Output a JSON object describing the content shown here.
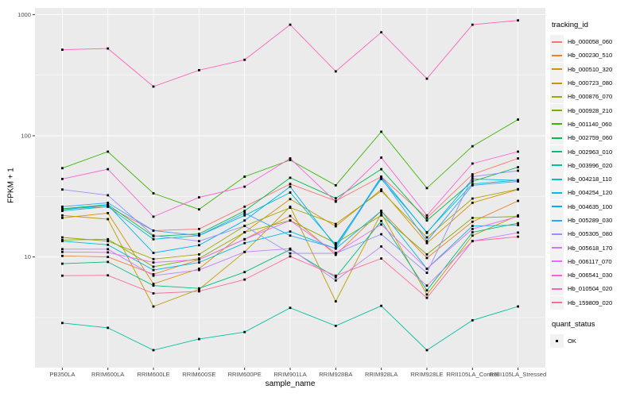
{
  "colors": {
    "panel_bg": "#EBEBEB",
    "grid": "#FFFFFF",
    "point": "#000000",
    "tick": "#333333",
    "tick_label": "#4D4D4D",
    "legend_key_bg": "#F2F2F2"
  },
  "chart_data": {
    "type": "line",
    "title": "",
    "xlabel": "sample_name",
    "ylabel": "FPKM + 1",
    "y_scale": "log10",
    "ylim": [
      1.2,
      1100
    ],
    "y_ticks": [
      1000,
      100,
      10
    ],
    "y_minor": [
      316.2,
      31.62,
      3.162
    ],
    "grid": "on",
    "legend_position": "right",
    "legend_title": "tracking_id",
    "legend2_title": "quant_status",
    "quant_status_items": [
      "OK"
    ],
    "categories": [
      "PB350LA",
      "RRIM600LA",
      "RRIM600LE",
      "RRIM600SE",
      "RRIM600PE",
      "RRIM901LA",
      "RRIM928BA",
      "RRIM928LA",
      "RRIM928LE",
      "RRII105LA_Control",
      "RRII105LA_Stressed"
    ],
    "series": [
      {
        "name": "Hb_000058_060",
        "color": "#F8766D",
        "values": [
          25,
          26,
          16.5,
          17,
          26,
          40,
          29,
          46,
          21,
          48,
          65
        ]
      },
      {
        "name": "Hb_000230_510",
        "color": "#EA8331",
        "values": [
          10.2,
          10,
          7.2,
          9.5,
          14,
          21.8,
          10.4,
          24,
          9.8,
          19.5,
          29
        ]
      },
      {
        "name": "Hb_000510_320",
        "color": "#D89000",
        "values": [
          21,
          23,
          6,
          8,
          16,
          30,
          17.9,
          36,
          13,
          28,
          36
        ]
      },
      {
        "name": "Hb_000723_080",
        "color": "#C09B00",
        "values": [
          22,
          20.5,
          3.9,
          5.4,
          11,
          26,
          4.3,
          23,
          4.9,
          15,
          22
        ]
      },
      {
        "name": "Hb_000876_070",
        "color": "#A3A500",
        "values": [
          14.5,
          13.5,
          9.6,
          10.5,
          18,
          25.5,
          18.7,
          35,
          14.5,
          30.3,
          36.3
        ]
      },
      {
        "name": "Hb_000928_210",
        "color": "#7CAE00",
        "values": [
          13.8,
          14,
          8.3,
          9.7,
          16,
          20,
          13,
          22,
          10.5,
          21,
          21.6
        ]
      },
      {
        "name": "Hb_001140_060",
        "color": "#39B600",
        "values": [
          54,
          74,
          33.5,
          24.7,
          46,
          63,
          39,
          108,
          37,
          82,
          136
        ]
      },
      {
        "name": "Hb_002759_060",
        "color": "#00BB4E",
        "values": [
          25,
          27,
          14.8,
          15.5,
          24,
          45,
          30.5,
          53,
          20,
          42,
          55
        ]
      },
      {
        "name": "Hb_002963_010",
        "color": "#00BF7D",
        "values": [
          8.8,
          9.1,
          5.8,
          5.5,
          7.5,
          11.5,
          6.8,
          19.8,
          5.3,
          16,
          19
        ]
      },
      {
        "name": "Hb_003996_020",
        "color": "#00C1A3",
        "values": [
          2.85,
          2.6,
          1.7,
          2.1,
          2.4,
          3.8,
          2.7,
          3.95,
          1.7,
          3,
          3.9
        ]
      },
      {
        "name": "Hb_004218_110",
        "color": "#00BFC4",
        "values": [
          24,
          26,
          14,
          15,
          22,
          34,
          12.6,
          44,
          16,
          40,
          43
        ]
      },
      {
        "name": "Hb_004254_120",
        "color": "#00BAE0",
        "values": [
          13.5,
          12.6,
          7.8,
          9,
          13,
          16.2,
          11.7,
          24,
          8,
          18,
          18.3
        ]
      },
      {
        "name": "Hb_004635_100",
        "color": "#00B0F6",
        "values": [
          24.5,
          26.8,
          10.8,
          12.5,
          20,
          38,
          12.2,
          46,
          15.8,
          44,
          42.8
        ]
      },
      {
        "name": "Hb_005289_030",
        "color": "#35A2FF",
        "values": [
          26,
          28,
          16.5,
          15,
          23,
          15,
          11.8,
          45,
          13.5,
          39,
          42
        ]
      },
      {
        "name": "Hb_005305_080",
        "color": "#9590FF",
        "values": [
          36,
          32.3,
          15,
          13.5,
          18,
          10.7,
          10.7,
          15.4,
          7.4,
          46,
          51.5
        ]
      },
      {
        "name": "Hb_005618_170",
        "color": "#C77CFF",
        "values": [
          11.6,
          11.6,
          7,
          7.8,
          11,
          11.7,
          6.4,
          12.2,
          5.8,
          13.5,
          15.9
        ]
      },
      {
        "name": "Hb_006117_070",
        "color": "#E76BF3",
        "values": [
          11,
          10.9,
          9,
          9.5,
          14,
          20,
          10.8,
          18.5,
          8,
          17,
          21.6
        ]
      },
      {
        "name": "Hb_006541_030",
        "color": "#FA62DB",
        "values": [
          44,
          53,
          21.5,
          31,
          38,
          65,
          28.6,
          66,
          22,
          59,
          74
        ]
      },
      {
        "name": "Hb_010504_020",
        "color": "#FF62BC",
        "values": [
          513,
          525,
          255,
          348,
          424,
          826,
          340,
          714,
          296,
          826,
          896
        ]
      },
      {
        "name": "Hb_159809_020",
        "color": "#FF6A98",
        "values": [
          7,
          7.05,
          5,
          5.2,
          6.5,
          10.1,
          7,
          9.7,
          4.6,
          13.5,
          14.7
        ]
      }
    ]
  }
}
